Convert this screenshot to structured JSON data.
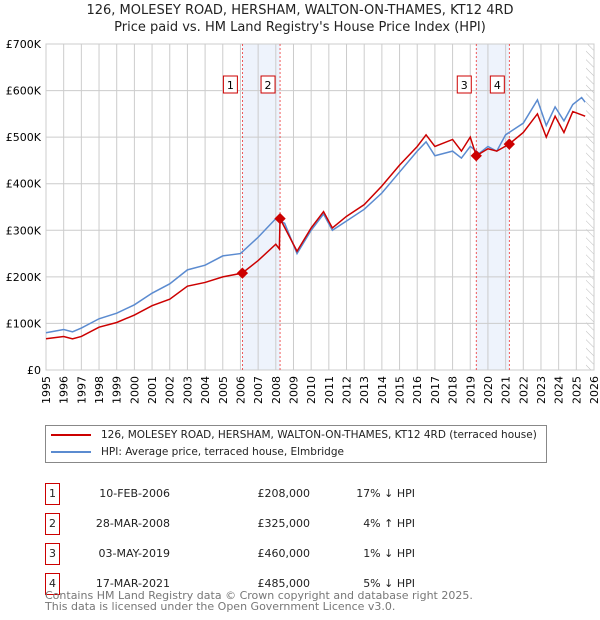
{
  "chart_data": {
    "type": "line",
    "title": "126, MOLESEY ROAD, HERSHAM, WALTON-ON-THAMES, KT12 4RD",
    "subtitle": "Price paid vs. HM Land Registry's House Price Index (HPI)",
    "xlim": [
      1995,
      2026
    ],
    "ylim": [
      0,
      700000
    ],
    "x_ticks": [
      "1995",
      "1996",
      "1997",
      "1998",
      "1999",
      "2000",
      "2001",
      "2002",
      "2003",
      "2004",
      "2005",
      "2006",
      "2007",
      "2008",
      "2009",
      "2010",
      "2011",
      "2012",
      "2013",
      "2014",
      "2015",
      "2016",
      "2017",
      "2018",
      "2019",
      "2020",
      "2021",
      "2022",
      "2023",
      "2024",
      "2025",
      "2026"
    ],
    "y_ticks": [
      {
        "v": 0,
        "label": "£0"
      },
      {
        "v": 100000,
        "label": "£100K"
      },
      {
        "v": 200000,
        "label": "£200K"
      },
      {
        "v": 300000,
        "label": "£300K"
      },
      {
        "v": 400000,
        "label": "£400K"
      },
      {
        "v": 500000,
        "label": "£500K"
      },
      {
        "v": 600000,
        "label": "£600K"
      },
      {
        "v": 700000,
        "label": "£700K"
      }
    ],
    "grid": true,
    "series": [
      {
        "name": "126, MOLESEY ROAD, HERSHAM, WALTON-ON-THAMES, KT12 4RD (terraced house)",
        "color": "#cc0000",
        "x": [
          1995,
          1996,
          1996.5,
          1997,
          1998,
          1999,
          2000,
          2001,
          2002,
          2003,
          2004,
          2005,
          2006.1,
          2007,
          2008,
          2008.2,
          2008.24,
          2009.2,
          2010,
          2010.7,
          2011.2,
          2012,
          2013,
          2014,
          2015,
          2016,
          2016.5,
          2017,
          2018,
          2018.5,
          2019,
          2019.34,
          2020,
          2020.5,
          2021.2,
          2022,
          2022.8,
          2023.3,
          2023.8,
          2024.3,
          2024.8,
          2025.5
        ],
        "y": [
          67000,
          72000,
          67000,
          72000,
          92000,
          102000,
          118000,
          138000,
          152000,
          180000,
          188000,
          200000,
          208000,
          235000,
          270000,
          260000,
          325000,
          255000,
          305000,
          340000,
          305000,
          330000,
          355000,
          395000,
          440000,
          480000,
          505000,
          480000,
          495000,
          470000,
          500000,
          460000,
          475000,
          470000,
          485000,
          510000,
          550000,
          500000,
          545000,
          510000,
          555000,
          545000
        ]
      },
      {
        "name": "HPI: Average price, terraced house, Elmbridge",
        "color": "#5b8bd0",
        "x": [
          1995,
          1996,
          1996.5,
          1997,
          1998,
          1999,
          2000,
          2001,
          2002,
          2003,
          2004,
          2005,
          2006,
          2007,
          2008,
          2008.5,
          2009.2,
          2010,
          2010.7,
          2011.2,
          2012,
          2013,
          2014,
          2015,
          2016,
          2016.5,
          2017,
          2018,
          2018.5,
          2019,
          2019.5,
          2020,
          2020.5,
          2021,
          2022,
          2022.8,
          2023.3,
          2023.8,
          2024.3,
          2024.8,
          2025.3,
          2025.5
        ],
        "y": [
          80000,
          87000,
          82000,
          90000,
          110000,
          122000,
          140000,
          165000,
          185000,
          215000,
          225000,
          245000,
          250000,
          285000,
          325000,
          315000,
          250000,
          300000,
          335000,
          300000,
          320000,
          345000,
          380000,
          425000,
          470000,
          490000,
          460000,
          470000,
          455000,
          480000,
          465000,
          480000,
          470000,
          505000,
          530000,
          580000,
          525000,
          565000,
          535000,
          570000,
          585000,
          575000
        ]
      }
    ],
    "sales": [
      {
        "n": "1",
        "date": "10-FEB-2006",
        "price": "£208,000",
        "hpi": "17% ↓ HPI",
        "x": 2006.11,
        "y": 208000
      },
      {
        "n": "2",
        "date": "28-MAR-2008",
        "price": "£325,000",
        "hpi": "4% ↑ HPI",
        "x": 2008.24,
        "y": 325000
      },
      {
        "n": "3",
        "date": "03-MAY-2019",
        "price": "£460,000",
        "hpi": "1% ↓ HPI",
        "x": 2019.34,
        "y": 460000
      },
      {
        "n": "4",
        "date": "17-MAR-2021",
        "price": "£485,000",
        "hpi": "5% ↓ HPI",
        "x": 2021.21,
        "y": 485000
      }
    ],
    "shaded": [
      [
        2006.11,
        2008.24
      ],
      [
        2019.34,
        2021.21
      ]
    ],
    "forecast_from": 2025.55
  },
  "footer": {
    "line1": "Contains HM Land Registry data © Crown copyright and database right 2025.",
    "line2": "This data is licensed under the Open Government Licence v3.0."
  }
}
